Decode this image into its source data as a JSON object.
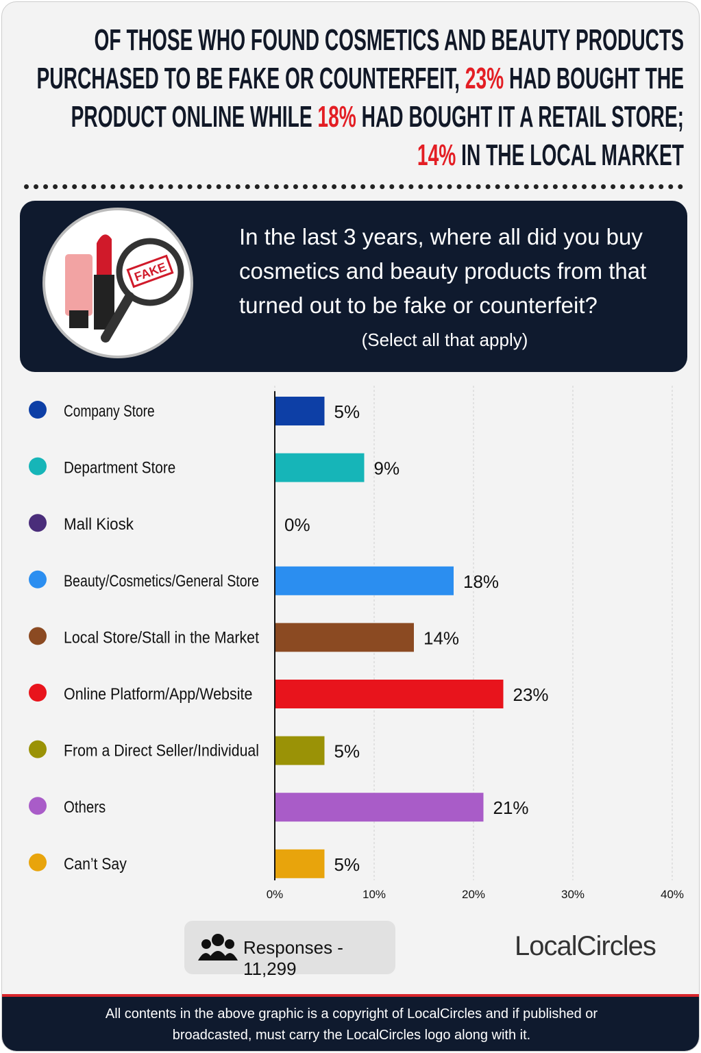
{
  "header": {
    "title_parts": [
      {
        "text": "OF THOSE WHO FOUND COSMETICS AND BEAUTY PRODUCTS PURCHASED TO BE FAKE OR COUNTERFEIT, ",
        "highlight": false
      },
      {
        "text": "23%",
        "highlight": true
      },
      {
        "text": " HAD BOUGHT THE PRODUCT ONLINE WHILE ",
        "highlight": false
      },
      {
        "text": "18%",
        "highlight": true
      },
      {
        "text": " HAD BOUGHT IT A RETAIL STORE; ",
        "highlight": false
      },
      {
        "text": "14%",
        "highlight": true
      },
      {
        "text": " IN THE LOCAL MARKET",
        "highlight": false
      }
    ],
    "highlight_color": "#e31e24"
  },
  "question": {
    "icon_label": "FAKE",
    "text": "In the last 3 years, where all did you buy cosmetics and beauty products from that turned out to be fake or counterfeit?",
    "note": "(Select all that apply)"
  },
  "chart_data": {
    "type": "bar",
    "orientation": "horizontal",
    "categories": [
      "Company Store",
      "Department Store",
      "Mall Kiosk",
      "Beauty/Cosmetics/General Store",
      "Local Store/Stall in the Market",
      "Online Platform/App/Website",
      "From a Direct Seller/Individual",
      "Others",
      "Can’t Say"
    ],
    "values": [
      5,
      9,
      0,
      18,
      14,
      23,
      5,
      21,
      5
    ],
    "value_labels": [
      "5%",
      "9%",
      "0%",
      "18%",
      "14%",
      "23%",
      "5%",
      "21%",
      "5%"
    ],
    "colors": [
      "#0d3fa6",
      "#16b5b8",
      "#4a2d7a",
      "#2b8ef0",
      "#8b4a22",
      "#e8141c",
      "#9a9206",
      "#a95cc8",
      "#e8a40c"
    ],
    "xlim": [
      0,
      40
    ],
    "xticks": [
      {
        "value": 0,
        "label": "0%"
      },
      {
        "value": 10,
        "label": "10%"
      },
      {
        "value": 20,
        "label": "20%"
      },
      {
        "value": 30,
        "label": "30%"
      },
      {
        "value": 40,
        "label": "40%"
      }
    ],
    "grid": true
  },
  "footer": {
    "responses": "Responses - 11,299",
    "logo": "LocalCircles",
    "copyright": "All contents in the above graphic is a copyright of LocalCircles and if published or broadcasted, must carry the LocalCircles logo along with it."
  }
}
